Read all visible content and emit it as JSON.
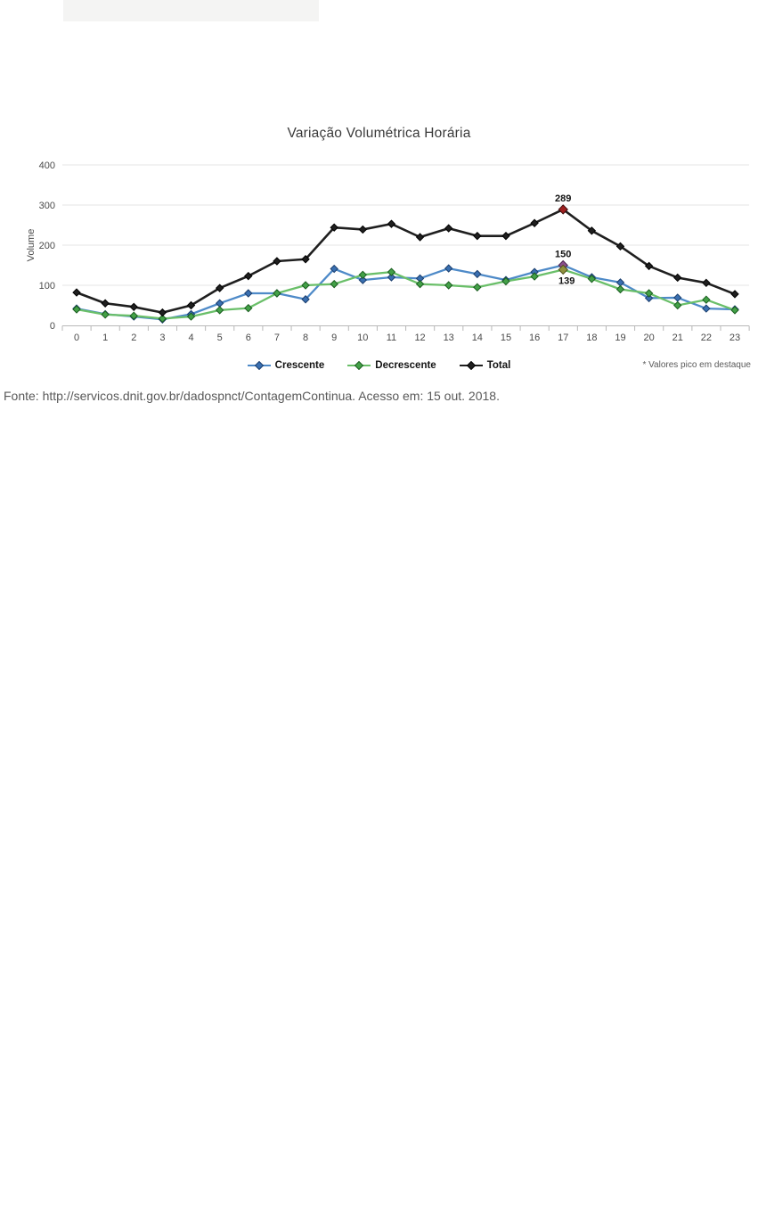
{
  "chart_data": {
    "type": "line",
    "title": "Variação Volumétrica Horária",
    "xlabel": "",
    "ylabel": "Volume",
    "x": [
      0,
      1,
      2,
      3,
      4,
      5,
      6,
      7,
      8,
      9,
      10,
      11,
      12,
      13,
      14,
      15,
      16,
      17,
      18,
      19,
      20,
      21,
      22,
      23
    ],
    "ylim": [
      0,
      400
    ],
    "yticks": [
      0,
      100,
      200,
      300,
      400
    ],
    "grid": true,
    "legend_position": "bottom",
    "footnote": "* Valores pico em destaque",
    "series": [
      {
        "name": "Crescente",
        "line_color": "#4e8ac8",
        "marker_fill": "#3a6fb0",
        "marker_stroke": "#1a3e6e",
        "values": [
          42,
          28,
          22,
          15,
          28,
          55,
          80,
          80,
          65,
          141,
          113,
          120,
          117,
          142,
          128,
          113,
          133,
          150,
          120,
          107,
          68,
          69,
          42,
          40
        ],
        "peak": {
          "x": 17,
          "value": 150,
          "label": "150",
          "marker_fill": "#8a4f8a",
          "marker_stroke": "#4a2450",
          "label_position": "above"
        }
      },
      {
        "name": "Decrescente",
        "line_color": "#6abf69",
        "marker_fill": "#43a047",
        "marker_stroke": "#1b5e20",
        "values": [
          40,
          27,
          24,
          17,
          22,
          38,
          43,
          80,
          100,
          103,
          126,
          133,
          103,
          100,
          95,
          110,
          122,
          139,
          116,
          90,
          80,
          50,
          64,
          38
        ],
        "peak": {
          "x": 17,
          "value": 139,
          "label": "139",
          "marker_fill": "#8f8f3d",
          "marker_stroke": "#4f4f1a",
          "label_position": "below"
        }
      },
      {
        "name": "Total",
        "line_color": "#1f1f1f",
        "marker_fill": "#1f1f1f",
        "marker_stroke": "#000000",
        "values": [
          82,
          55,
          46,
          32,
          50,
          93,
          123,
          160,
          165,
          244,
          239,
          253,
          220,
          242,
          223,
          223,
          255,
          289,
          236,
          197,
          148,
          119,
          106,
          78
        ],
        "peak": {
          "x": 17,
          "value": 289,
          "label": "289",
          "marker_fill": "#9e1f1f",
          "marker_stroke": "#3d0c0c",
          "label_position": "above"
        }
      }
    ]
  },
  "source_line": "Fonte: http://servicos.dnit.gov.br/dadospnct/ContagemContinua. Acesso em: 15 out. 2018."
}
